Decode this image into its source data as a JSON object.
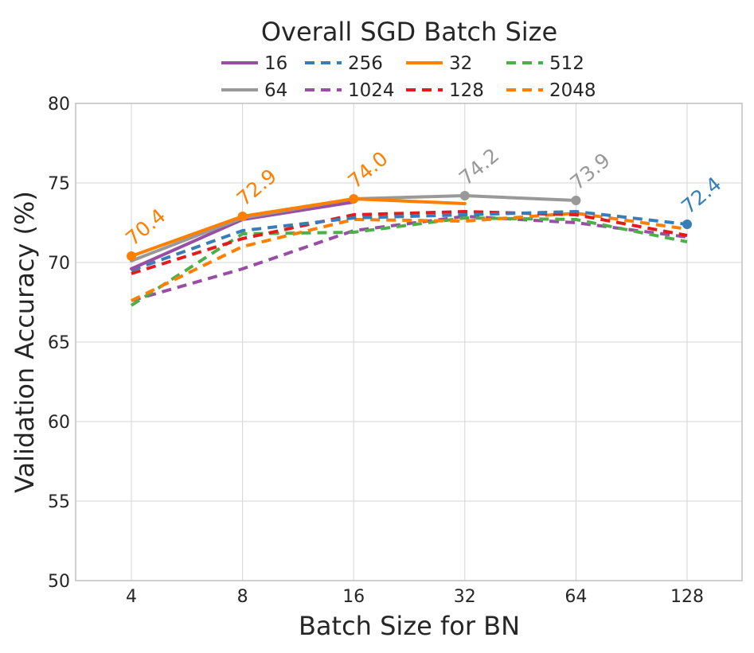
{
  "chart_data": {
    "type": "line",
    "title": "",
    "legend_title": "Overall SGD Batch Size",
    "legend_placement": "top-center",
    "xlabel": "Batch Size for BN",
    "ylabel": "Validation Accuracy (%)",
    "x_categories": [
      "4",
      "8",
      "16",
      "32",
      "64",
      "128"
    ],
    "y_ticks": [
      "50",
      "55",
      "60",
      "65",
      "70",
      "75",
      "80"
    ],
    "ylim": [
      50,
      80
    ],
    "grid": true,
    "series": [
      {
        "name": "16",
        "color": "#984ea3",
        "style": "solid",
        "values": [
          69.6,
          72.7,
          73.8,
          null,
          null,
          null
        ]
      },
      {
        "name": "64",
        "color": "#999999",
        "style": "solid",
        "values": [
          70.1,
          72.8,
          74.0,
          74.2,
          73.9,
          null
        ]
      },
      {
        "name": "256",
        "color": "#377eb8",
        "style": "dashed",
        "values": [
          69.5,
          72.0,
          72.8,
          73.0,
          73.2,
          72.4
        ]
      },
      {
        "name": "1024",
        "color": "#984ea3",
        "style": "dashed",
        "values": [
          67.6,
          69.6,
          72.0,
          72.9,
          72.5,
          71.6
        ]
      },
      {
        "name": "32",
        "color": "#ff7f00",
        "style": "solid",
        "values": [
          70.4,
          72.9,
          74.0,
          73.7,
          null,
          null
        ]
      },
      {
        "name": "128",
        "color": "#e41a1c",
        "style": "dashed",
        "values": [
          69.3,
          71.5,
          73.0,
          73.2,
          73.0,
          71.7
        ]
      },
      {
        "name": "512",
        "color": "#4daf4a",
        "style": "dashed",
        "values": [
          67.3,
          71.8,
          71.9,
          72.8,
          72.7,
          71.3
        ]
      },
      {
        "name": "2048",
        "color": "#ff7f00",
        "style": "dashed",
        "values": [
          67.6,
          71.0,
          72.7,
          72.6,
          73.1,
          72.1
        ]
      }
    ],
    "markers": [
      {
        "series": "32",
        "x_index": 0,
        "y": 70.4,
        "label": "70.4"
      },
      {
        "series": "32",
        "x_index": 1,
        "y": 72.9,
        "label": "72.9"
      },
      {
        "series": "32",
        "x_index": 2,
        "y": 74.0,
        "label": "74.0"
      },
      {
        "series": "64",
        "x_index": 3,
        "y": 74.2,
        "label": "74.2"
      },
      {
        "series": "64",
        "x_index": 4,
        "y": 73.9,
        "label": "73.9"
      },
      {
        "series": "256",
        "x_index": 5,
        "y": 72.4,
        "label": "72.4"
      }
    ]
  }
}
